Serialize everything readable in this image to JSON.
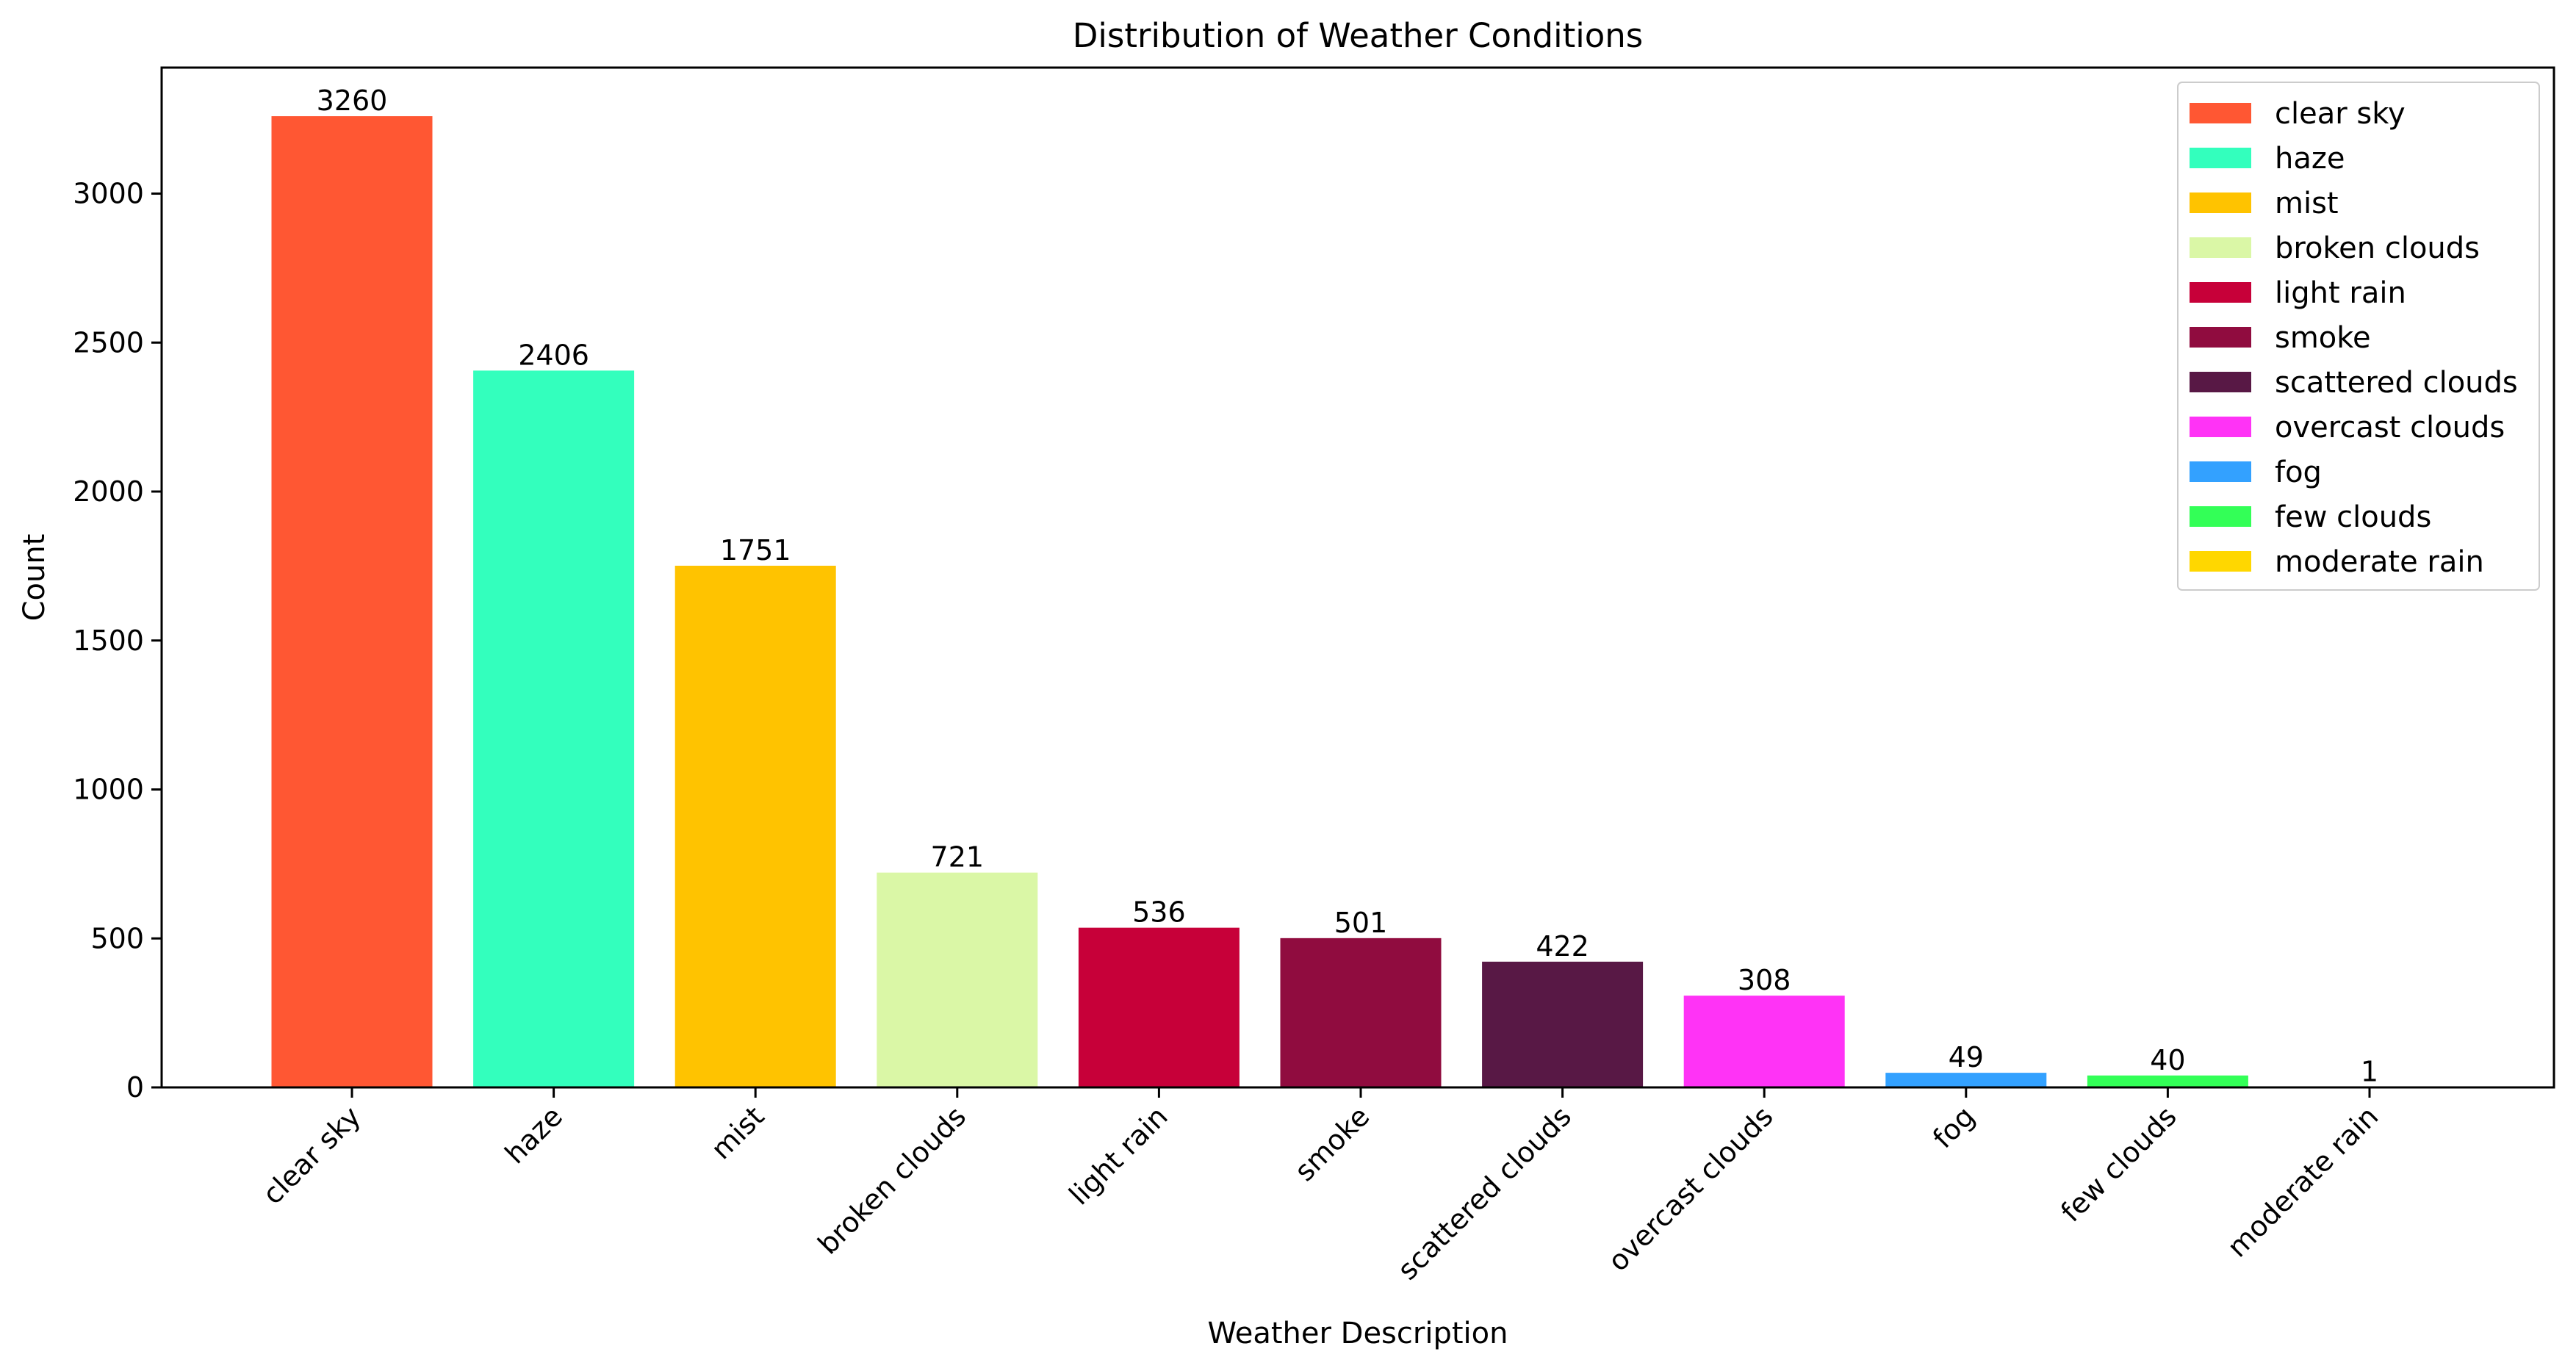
{
  "chart_data": {
    "type": "bar",
    "title": "Distribution of Weather Conditions",
    "xlabel": "Weather Description",
    "ylabel": "Count",
    "categories": [
      "clear sky",
      "haze",
      "mist",
      "broken clouds",
      "light rain",
      "smoke",
      "scattered clouds",
      "overcast clouds",
      "fog",
      "few clouds",
      "moderate rain"
    ],
    "values": [
      3260,
      2406,
      1751,
      721,
      536,
      501,
      422,
      308,
      49,
      40,
      1
    ],
    "colors": [
      "#FF5733",
      "#33FFBD",
      "#FFC300",
      "#DAF7A6",
      "#C70039",
      "#900C3F",
      "#581845",
      "#FF33F6",
      "#33A1FF",
      "#33FF57",
      "#FFD700"
    ],
    "yticks": [
      0,
      500,
      1000,
      1500,
      2000,
      2500,
      3000
    ],
    "ylim": [
      0,
      3423
    ],
    "grid": false,
    "legend_position": "top-right",
    "tick_rotation_deg": 45
  }
}
